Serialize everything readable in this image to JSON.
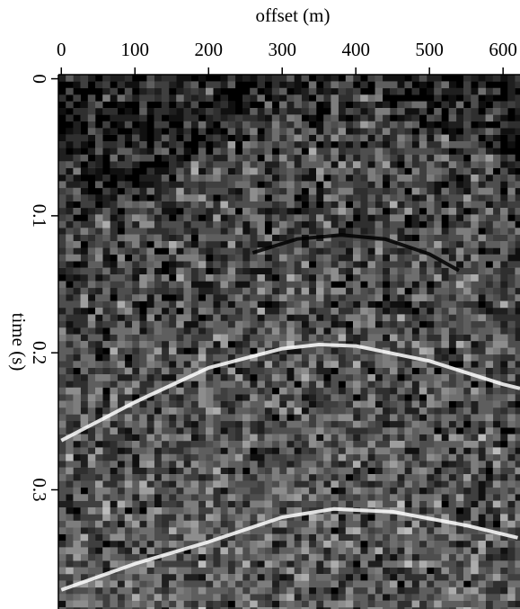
{
  "chart_data": {
    "type": "line",
    "x_label": "offset (m)",
    "y_label": "time (s)",
    "xlim": [
      -4,
      623
    ],
    "xticks": [
      0,
      100,
      200,
      300,
      400,
      500,
      600
    ],
    "ylim": [
      -0.003,
      0.387
    ],
    "yticks": [
      0,
      0.1,
      0.2,
      0.3
    ],
    "y_inverted": true,
    "x_axis_position": "top",
    "series": [
      {
        "color": "#000000",
        "x": [
          260,
          320,
          380,
          440,
          500,
          540
        ],
        "values": [
          0.127,
          0.117,
          0.114,
          0.117,
          0.128,
          0.14
        ]
      },
      {
        "color": "#ffffff",
        "x": [
          0,
          100,
          200,
          300,
          350,
          400,
          500,
          600,
          623
        ],
        "values": [
          0.264,
          0.236,
          0.211,
          0.197,
          0.194,
          0.195,
          0.206,
          0.223,
          0.226
        ]
      },
      {
        "color": "#ffffff",
        "x": [
          0,
          100,
          200,
          300,
          370,
          450,
          550,
          620
        ],
        "values": [
          0.373,
          0.354,
          0.338,
          0.32,
          0.314,
          0.316,
          0.326,
          0.335
        ]
      }
    ]
  }
}
